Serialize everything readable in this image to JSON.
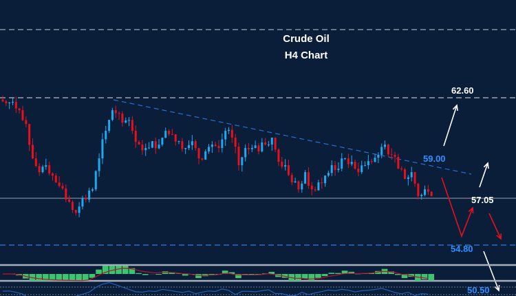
{
  "chart_data": {
    "type": "candlestick",
    "title": "Crude Oil",
    "subtitle": "H4 Chart",
    "ylim": [
      50.3,
      64.2
    ],
    "grid": false,
    "closes": [
      62.31,
      62.38,
      61.94,
      61.21,
      59.39,
      58.66,
      59.03,
      58.48,
      57.93,
      57.21,
      56.66,
      56.84,
      57.21,
      57.75,
      59.39,
      60.85,
      61.94,
      61.76,
      61.4,
      60.85,
      60.12,
      59.94,
      60.3,
      60.12,
      60.85,
      60.67,
      60.3,
      59.94,
      60.3,
      59.39,
      59.76,
      60.12,
      59.94,
      60.85,
      60.49,
      59.03,
      59.94,
      59.94,
      59.76,
      60.12,
      60.49,
      59.21,
      59.03,
      58.12,
      57.75,
      58.66,
      57.75,
      58.12,
      58.48,
      59.03,
      58.85,
      59.39,
      59.21,
      58.66,
      59.03,
      59.21,
      59.58,
      60.12,
      59.58,
      58.85,
      58.3,
      58.66,
      57.39,
      57.75,
      57.39
    ],
    "levels": [
      {
        "label": "62.60",
        "value": 62.6,
        "style": "dashed",
        "color": "#ffffff"
      },
      {
        "label": "59.00",
        "value": 59.0,
        "style": "label",
        "color": "#2f8fff"
      },
      {
        "label": "57.05",
        "value": 57.05,
        "style": "solid",
        "color": "#ffffff"
      },
      {
        "label": "54.80",
        "value": 54.8,
        "style": "dashed",
        "color": "#2f8fff"
      },
      {
        "label": "50.50",
        "value": 50.5,
        "style": "label",
        "color": "#2f8fff"
      }
    ],
    "trendline": {
      "from": 62.5,
      "to": 58.5,
      "color": "#2a6fd0",
      "style": "dashed"
    },
    "colors": {
      "up": "#1eaaf0",
      "down": "#e8101a",
      "background": "#0a1e3a",
      "histogram": "#3cc46e",
      "signal": "#c0102a",
      "oscillator": "#1d62b8"
    }
  }
}
